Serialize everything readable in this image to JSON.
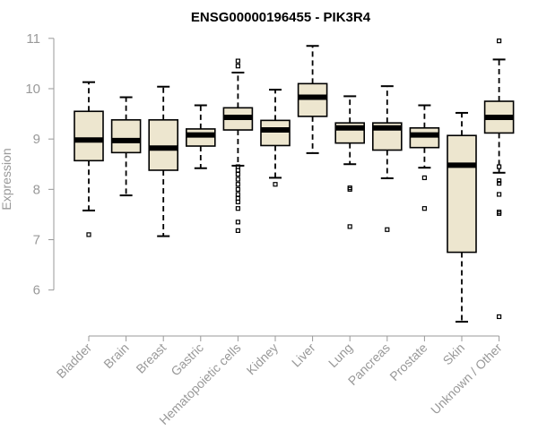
{
  "chart_data": {
    "type": "boxplot",
    "title": "ENSG00000196455 - PIK3R4",
    "xlabel": "",
    "ylabel": "Expression",
    "ylim": [
      5.3,
      11.05
    ],
    "yticks": [
      6,
      7,
      8,
      9,
      10,
      11
    ],
    "grid": false,
    "legend": "none",
    "colors": {
      "box_fill": "#ede6cf",
      "stroke": "#000000",
      "axis": "#999999",
      "title": "#000000"
    },
    "categories": [
      "Bladder",
      "Brain",
      "Breast",
      "Gastric",
      "Hematopoietic cells",
      "Kidney",
      "Liver",
      "Lung",
      "Pancreas",
      "Prostate",
      "Skin",
      "Unknown / Other"
    ],
    "boxes": [
      {
        "label": "Bladder",
        "q1": 8.57,
        "median": 8.98,
        "q3": 9.55,
        "whisker_low": 7.58,
        "whisker_high": 10.13,
        "outliers": [
          7.1
        ]
      },
      {
        "label": "Brain",
        "q1": 8.73,
        "median": 8.97,
        "q3": 9.38,
        "whisker_low": 7.88,
        "whisker_high": 9.83,
        "outliers": []
      },
      {
        "label": "Breast",
        "q1": 8.38,
        "median": 8.82,
        "q3": 9.38,
        "whisker_low": 7.07,
        "whisker_high": 10.04,
        "outliers": []
      },
      {
        "label": "Gastric",
        "q1": 8.86,
        "median": 9.08,
        "q3": 9.2,
        "whisker_low": 8.42,
        "whisker_high": 9.67,
        "outliers": []
      },
      {
        "label": "Hematopoietic cells",
        "q1": 9.18,
        "median": 9.43,
        "q3": 9.62,
        "whisker_low": 8.47,
        "whisker_high": 10.32,
        "outliers": [
          10.55,
          10.45,
          8.45,
          8.38,
          8.3,
          8.2,
          8.1,
          8.0,
          7.9,
          7.82,
          7.75,
          7.62,
          7.35,
          7.18
        ]
      },
      {
        "label": "Kidney",
        "q1": 8.87,
        "median": 9.18,
        "q3": 9.37,
        "whisker_low": 8.23,
        "whisker_high": 9.98,
        "outliers": [
          8.1
        ]
      },
      {
        "label": "Liver",
        "q1": 9.45,
        "median": 9.83,
        "q3": 10.1,
        "whisker_low": 8.72,
        "whisker_high": 10.85,
        "outliers": []
      },
      {
        "label": "Lung",
        "q1": 8.92,
        "median": 9.22,
        "q3": 9.32,
        "whisker_low": 8.5,
        "whisker_high": 9.85,
        "outliers": [
          8.03,
          8.0,
          7.26
        ]
      },
      {
        "label": "Pancreas",
        "q1": 8.78,
        "median": 9.22,
        "q3": 9.32,
        "whisker_low": 8.22,
        "whisker_high": 10.05,
        "outliers": [
          7.2
        ]
      },
      {
        "label": "Prostate",
        "q1": 8.83,
        "median": 9.08,
        "q3": 9.22,
        "whisker_low": 8.43,
        "whisker_high": 9.67,
        "outliers": [
          8.23,
          7.62
        ]
      },
      {
        "label": "Skin",
        "q1": 6.75,
        "median": 8.48,
        "q3": 9.07,
        "whisker_low": 5.37,
        "whisker_high": 9.52,
        "outliers": []
      },
      {
        "label": "Unknown / Other",
        "q1": 9.12,
        "median": 9.43,
        "q3": 9.75,
        "whisker_low": 8.33,
        "whisker_high": 10.58,
        "outliers": [
          10.95,
          8.45,
          8.17,
          8.12,
          7.9,
          7.55,
          7.52,
          5.47
        ]
      }
    ]
  }
}
